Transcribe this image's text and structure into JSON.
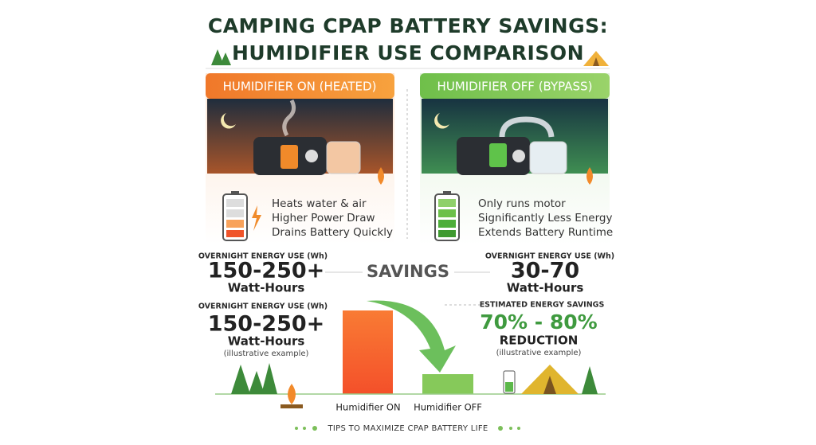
{
  "header": {
    "title_line_1": "CAMPING CPAP BATTERY SAVINGS:",
    "title_line_2": "HUMIDIFIER USE COMPARISON"
  },
  "panels": [
    {
      "title": "HUMIDIFIER ON (HEATED)",
      "bullets": [
        "Heats water & air",
        "Higher Power Draw",
        "Drains Battery Quickly"
      ]
    },
    {
      "title": "HUMIDIFIER OFF (BYPASS)",
      "bullets": [
        "Only runs motor",
        "Significantly Less Energy",
        "Extends Battery Runtime"
      ]
    }
  ],
  "stats": {
    "left": [
      {
        "label": "OVERNIGHT ENERGY USE (Wh)",
        "value": "150-250+",
        "unit": "Watt-Hours"
      },
      {
        "label": "OVERNIGHT ENERGY USE (Wh)",
        "value": "150-250+",
        "unit": "Watt-Hours",
        "note": "(illustrative example)"
      }
    ],
    "right": [
      {
        "label": "OVERNIGHT ENERGY USE (Wh)",
        "value": "30-70",
        "unit": "Watt-Hours"
      },
      {
        "label": "ESTIMATED ENERGY SAVINGS",
        "value": "70% - 80%",
        "unit": "REDUCTION",
        "note": "(illustrative example)"
      }
    ]
  },
  "savings_label": "SAVINGS",
  "bars": [
    "Humidifier ON",
    "Humidifier OFF"
  ],
  "footer": "TIPS TO MAXIMIZE CPAP BATTERY LIFE"
}
